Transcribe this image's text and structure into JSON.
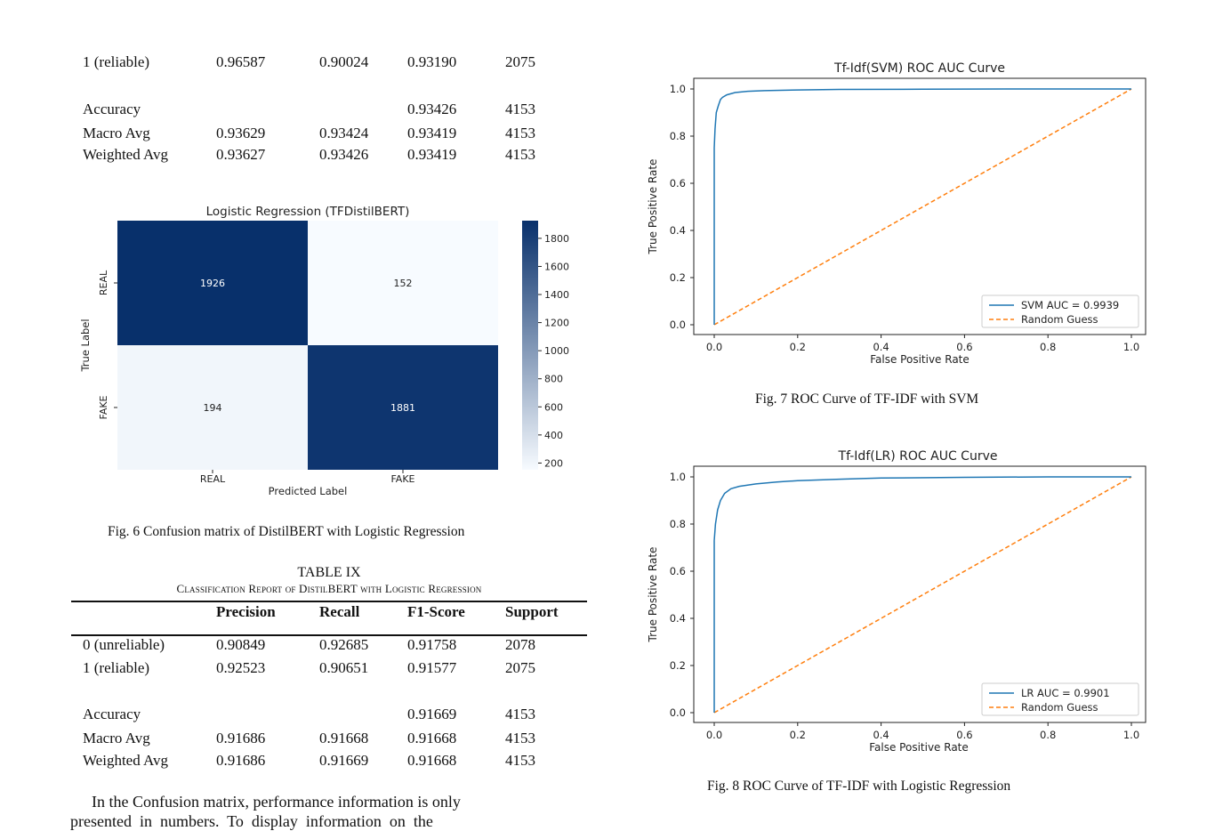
{
  "top_table": {
    "rows": [
      [
        "1 (reliable)",
        "0.96587",
        "0.90024",
        "0.93190",
        "2075"
      ],
      [
        "Accuracy",
        "",
        "",
        "0.93426",
        "4153"
      ],
      [
        "Macro Avg",
        "0.93629",
        "0.93424",
        "0.93419",
        "4153"
      ],
      [
        "Weighted Avg",
        "0.93627",
        "0.93426",
        "0.93419",
        "4153"
      ]
    ]
  },
  "fig6": {
    "caption": "Fig. 6  Confusion matrix of DistilBERT with Logistic Regression",
    "chart_data": {
      "type": "heatmap",
      "title": "Logistic Regression (TFDistilBERT)",
      "xlabel": "Predicted Label",
      "ylabel": "True Label",
      "x_categories": [
        "REAL",
        "FAKE"
      ],
      "y_categories": [
        "REAL",
        "FAKE"
      ],
      "values": [
        [
          1926,
          152
        ],
        [
          194,
          1881
        ]
      ],
      "colorbar_ticks": [
        "1800",
        "1600",
        "1400",
        "1200",
        "1000",
        "800",
        "600",
        "400",
        "200"
      ],
      "colorbar_range": [
        152,
        1926
      ],
      "colormap": "Blues",
      "high_color": "#08306b",
      "low_color": "#f7fbff"
    }
  },
  "table9": {
    "number": "TABLE IX",
    "title": "Classification Report of DistilBERT with Logistic Regression",
    "columns": [
      "",
      "Precision",
      "Recall",
      "F1-Score",
      "Support"
    ],
    "rows": [
      [
        "0 (unreliable)",
        "0.90849",
        "0.92685",
        "0.91758",
        "2078"
      ],
      [
        "1 (reliable)",
        "0.92523",
        "0.90651",
        "0.91577",
        "2075"
      ],
      [
        "Accuracy",
        "",
        "",
        "0.91669",
        "4153"
      ],
      [
        "Macro Avg",
        "0.91686",
        "0.91668",
        "0.91668",
        "4153"
      ],
      [
        "Weighted Avg",
        "0.91686",
        "0.91669",
        "0.91668",
        "4153"
      ]
    ]
  },
  "paragraph": {
    "line1": "In the Confusion matrix, performance information is only",
    "line2": "presented  in  numbers.  To  display  information  on  the"
  },
  "fig7": {
    "caption": "Fig. 7  ROC Curve of TF-IDF with SVM",
    "chart_data": {
      "type": "line",
      "title": "Tf-Idf(SVM) ROC AUC Curve",
      "xlabel": "False Positive Rate",
      "ylabel": "True Positive Rate",
      "xlim": [
        0,
        1
      ],
      "ylim": [
        0,
        1
      ],
      "x_ticks": [
        "0.0",
        "0.2",
        "0.4",
        "0.6",
        "0.8",
        "1.0"
      ],
      "y_ticks": [
        "0.0",
        "0.2",
        "0.4",
        "0.6",
        "0.8",
        "1.0"
      ],
      "legend": "lower-right",
      "series": [
        {
          "name": "SVM AUC = 0.9939",
          "color": "#1f77b4",
          "style": "solid",
          "x": [
            0,
            0,
            0.002,
            0.005,
            0.01,
            0.015,
            0.02,
            0.03,
            0.05,
            0.08,
            0.12,
            0.2,
            0.3,
            0.5,
            0.7,
            1.0
          ],
          "y": [
            0,
            0.75,
            0.83,
            0.9,
            0.93,
            0.955,
            0.965,
            0.975,
            0.985,
            0.99,
            0.993,
            0.996,
            0.998,
            0.999,
            1.0,
            1.0
          ]
        },
        {
          "name": "Random Guess",
          "color": "#ff7f0e",
          "style": "dashed",
          "x": [
            0,
            1
          ],
          "y": [
            0,
            1
          ]
        }
      ]
    }
  },
  "fig8": {
    "caption": "Fig. 8  ROC Curve of TF-IDF with Logistic Regression",
    "chart_data": {
      "type": "line",
      "title": "Tf-Idf(LR) ROC AUC Curve",
      "xlabel": "False Positive Rate",
      "ylabel": "True Positive Rate",
      "xlim": [
        0,
        1
      ],
      "ylim": [
        0,
        1
      ],
      "x_ticks": [
        "0.0",
        "0.2",
        "0.4",
        "0.6",
        "0.8",
        "1.0"
      ],
      "y_ticks": [
        "0.0",
        "0.2",
        "0.4",
        "0.6",
        "0.8",
        "1.0"
      ],
      "legend": "lower-right",
      "series": [
        {
          "name": "LR AUC = 0.9901",
          "color": "#1f77b4",
          "style": "solid",
          "x": [
            0,
            0,
            0.003,
            0.008,
            0.015,
            0.025,
            0.04,
            0.06,
            0.1,
            0.15,
            0.2,
            0.3,
            0.4,
            0.6,
            0.8,
            1.0
          ],
          "y": [
            0,
            0.73,
            0.8,
            0.86,
            0.9,
            0.93,
            0.95,
            0.96,
            0.97,
            0.978,
            0.984,
            0.99,
            0.995,
            0.998,
            1.0,
            1.0
          ]
        },
        {
          "name": "Random Guess",
          "color": "#ff7f0e",
          "style": "dashed",
          "x": [
            0,
            1
          ],
          "y": [
            0,
            1
          ]
        }
      ]
    }
  }
}
